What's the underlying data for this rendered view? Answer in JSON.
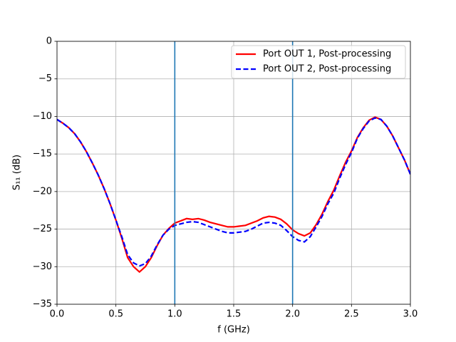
{
  "chart_data": {
    "type": "line",
    "xlabel": "f (GHz)",
    "ylabel": "S₁₁ (dB)",
    "x": [
      0,
      0.05,
      0.1,
      0.15,
      0.2,
      0.25,
      0.3,
      0.35,
      0.4,
      0.45,
      0.5,
      0.55,
      0.6,
      0.65,
      0.7,
      0.75,
      0.8,
      0.85,
      0.9,
      0.95,
      1.0,
      1.05,
      1.1,
      1.15,
      1.2,
      1.25,
      1.3,
      1.35,
      1.4,
      1.45,
      1.5,
      1.55,
      1.6,
      1.65,
      1.7,
      1.75,
      1.8,
      1.85,
      1.9,
      1.95,
      2.0,
      2.05,
      2.1,
      2.15,
      2.2,
      2.25,
      2.3,
      2.35,
      2.4,
      2.45,
      2.5,
      2.55,
      2.6,
      2.65,
      2.7,
      2.75,
      2.8,
      2.85,
      2.9,
      2.95,
      3.0
    ],
    "series": [
      {
        "name": "Port OUT 1, Post-processing",
        "color": "#ff0000",
        "linestyle": "solid",
        "values": [
          -10.4,
          -10.9,
          -11.5,
          -12.3,
          -13.4,
          -14.7,
          -16.2,
          -17.8,
          -19.6,
          -21.6,
          -23.8,
          -26.2,
          -28.8,
          -30.0,
          -30.7,
          -30.0,
          -28.8,
          -27.2,
          -25.8,
          -24.9,
          -24.2,
          -23.9,
          -23.6,
          -23.7,
          -23.6,
          -23.8,
          -24.1,
          -24.3,
          -24.5,
          -24.7,
          -24.7,
          -24.6,
          -24.5,
          -24.2,
          -23.9,
          -23.5,
          -23.3,
          -23.4,
          -23.7,
          -24.3,
          -25.1,
          -25.6,
          -25.9,
          -25.5,
          -24.4,
          -23.0,
          -21.3,
          -19.8,
          -17.9,
          -16.1,
          -14.6,
          -12.8,
          -11.5,
          -10.5,
          -10.1,
          -10.4,
          -11.3,
          -12.6,
          -14.2,
          -15.8,
          -17.7
        ]
      },
      {
        "name": "Port OUT 2, Post-processing",
        "color": "#0000ff",
        "linestyle": "dashed",
        "values": [
          -10.4,
          -10.9,
          -11.5,
          -12.3,
          -13.4,
          -14.7,
          -16.2,
          -17.8,
          -19.6,
          -21.6,
          -23.8,
          -26.0,
          -28.4,
          -29.5,
          -29.9,
          -29.6,
          -28.6,
          -27.1,
          -25.8,
          -25.0,
          -24.5,
          -24.3,
          -24.1,
          -24.0,
          -24.1,
          -24.4,
          -24.7,
          -25.0,
          -25.3,
          -25.5,
          -25.5,
          -25.4,
          -25.3,
          -25.0,
          -24.6,
          -24.2,
          -24.1,
          -24.2,
          -24.5,
          -25.2,
          -26.0,
          -26.5,
          -26.7,
          -26.0,
          -24.7,
          -23.3,
          -21.6,
          -20.2,
          -18.2,
          -16.4,
          -14.8,
          -12.9,
          -11.6,
          -10.6,
          -10.2,
          -10.4,
          -11.3,
          -12.6,
          -14.2,
          -15.8,
          -17.7
        ]
      }
    ],
    "vlines": [
      1,
      2
    ],
    "vline_color": "#1f77b4",
    "xlim": [
      0,
      3
    ],
    "xticks": [
      {
        "value": 0,
        "label": "0.0"
      },
      {
        "value": 0.5,
        "label": "0.5"
      },
      {
        "value": 1,
        "label": "1.0"
      },
      {
        "value": 1.5,
        "label": "1.5"
      },
      {
        "value": 2,
        "label": "2.0"
      },
      {
        "value": 2.5,
        "label": "2.5"
      },
      {
        "value": 3,
        "label": "3.0"
      }
    ],
    "ylim": [
      -35,
      0
    ],
    "yticks": [
      {
        "value": -35,
        "label": "−35"
      },
      {
        "value": -30,
        "label": "−30"
      },
      {
        "value": -25,
        "label": "−25"
      },
      {
        "value": -20,
        "label": "−20"
      },
      {
        "value": -15,
        "label": "−15"
      },
      {
        "value": -10,
        "label": "−10"
      },
      {
        "value": -5,
        "label": "−5"
      },
      0
    ],
    "grid": true,
    "legend": "upper right"
  }
}
